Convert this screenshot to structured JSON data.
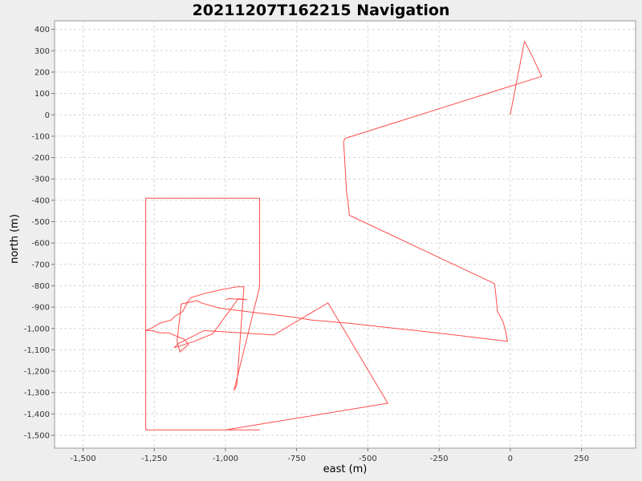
{
  "chart_data": {
    "type": "line",
    "title": "20211207T162215 Navigation",
    "xlabel": "east (m)",
    "ylabel": "north (m)",
    "xlim": [
      -1600,
      440
    ],
    "ylim": [
      -1560,
      440
    ],
    "x_ticks": [
      -1500,
      -1250,
      -1000,
      -750,
      -500,
      -250,
      0,
      250
    ],
    "x_tick_labels": [
      "-1,500",
      "-1,250",
      "-1,000",
      "-750",
      "-500",
      "-250",
      "0",
      "250"
    ],
    "y_ticks": [
      400,
      300,
      200,
      100,
      0,
      -100,
      -200,
      -300,
      -400,
      -500,
      -600,
      -700,
      -800,
      -900,
      -1000,
      -1100,
      -1200,
      -1300,
      -1400,
      -1500
    ],
    "y_tick_labels": [
      "400",
      "300",
      "200",
      "100",
      "0",
      "-100",
      "-200",
      "-300",
      "-400",
      "-500",
      "-600",
      "-700",
      "-800",
      "-900",
      "-1,000",
      "-1,100",
      "-1,200",
      "-1,300",
      "-1,400",
      "-1,500"
    ],
    "grid": true,
    "legend": "none",
    "line_color": "#ff4d4d",
    "series": [
      {
        "x": [
          0,
          50,
          75,
          110,
          -580,
          -585,
          -575,
          -570,
          -565,
          -55,
          -50,
          -45,
          -25,
          -15,
          -10,
          -260,
          -400,
          -570,
          -700,
          -770,
          -900,
          -1020,
          -1085,
          -1100,
          -1155,
          -1170,
          -1160,
          -1130,
          -1145,
          -1165,
          -1200,
          -1230,
          -1260,
          -1280,
          -1255,
          -1230,
          -1190,
          -1175,
          -1160,
          -1150,
          -1130,
          -1120,
          -1070,
          -1020,
          -960,
          -935,
          -960,
          -970,
          -880,
          -880,
          -1280,
          -1280,
          -880,
          -880,
          -950,
          -965,
          -935,
          -1000,
          -430,
          -640,
          -830,
          -1075,
          -1165,
          -1180,
          -1110,
          -1045,
          -955,
          -925,
          -990,
          -1000
        ],
        "y": [
          0,
          345,
          280,
          180,
          -110,
          -125,
          -360,
          -400,
          -470,
          -790,
          -850,
          -920,
          -970,
          -1020,
          -1060,
          -1020,
          -1000,
          -975,
          -960,
          -945,
          -925,
          -905,
          -880,
          -870,
          -885,
          -1060,
          -1110,
          -1075,
          -1050,
          -1040,
          -1020,
          -1020,
          -1010,
          -1010,
          -995,
          -975,
          -960,
          -940,
          -930,
          -920,
          -870,
          -855,
          -835,
          -820,
          -805,
          -805,
          -1265,
          -1290,
          -805,
          -390,
          -390,
          -1475,
          -1475,
          -1475,
          -1475,
          -1475,
          -1475,
          -1475,
          -1350,
          -880,
          -1030,
          -1010,
          -1070,
          -1090,
          -1060,
          -1025,
          -860,
          -865,
          -860,
          -865
        ]
      }
    ]
  }
}
